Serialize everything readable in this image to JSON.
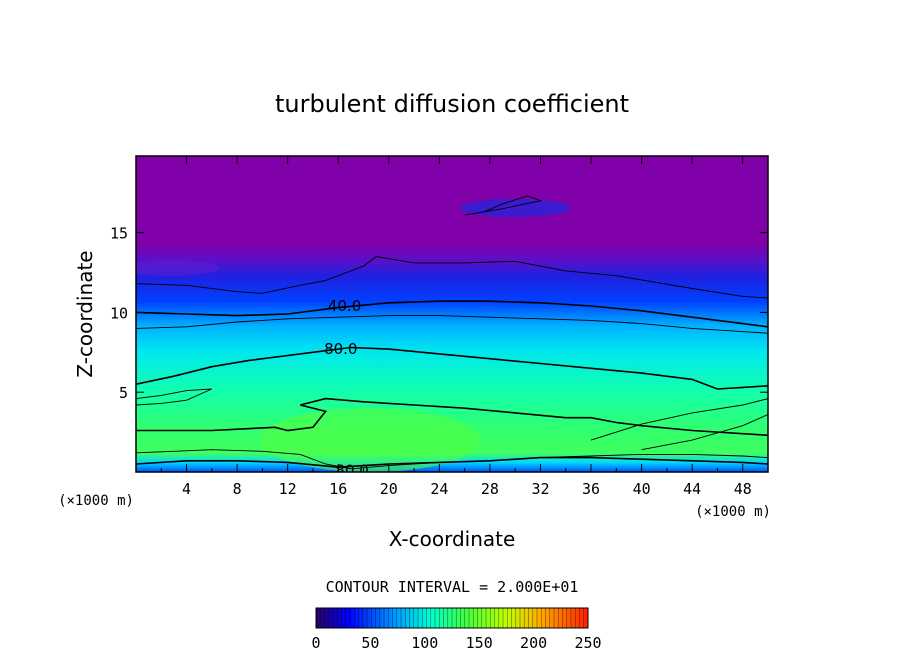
{
  "chart_data": {
    "type": "heatmap",
    "title": "turbulent diffusion coefficient",
    "xlabel": "X-coordinate",
    "ylabel": "Z-coordinate",
    "x_unit": "(×1000 m)",
    "z_unit": "(×1000 m)",
    "xlim": [
      0,
      50
    ],
    "ylim": [
      0,
      19.8
    ],
    "x_ticks": [
      4,
      8,
      12,
      16,
      20,
      24,
      28,
      32,
      36,
      40,
      44,
      48
    ],
    "y_ticks": [
      5,
      10,
      15
    ],
    "contour_interval_text": "CONTOUR INTERVAL = 2.000E+01",
    "contour_labels": [
      {
        "text": "40.0",
        "x": 16.5,
        "z": 10.4
      },
      {
        "text": "80.0",
        "x": 16.2,
        "z": 7.7
      },
      {
        "text": "80.0",
        "x": 17.1,
        "z": 0.1
      }
    ],
    "contours": [
      {
        "level": 20,
        "points": [
          [
            0,
            11.8
          ],
          [
            4,
            11.7
          ],
          [
            8,
            11.3
          ],
          [
            10,
            11.2
          ],
          [
            13,
            11.7
          ],
          [
            15,
            12.0
          ],
          [
            18,
            12.9
          ],
          [
            19,
            13.5
          ],
          [
            22,
            13.1
          ],
          [
            26,
            13.1
          ],
          [
            30,
            13.2
          ],
          [
            34,
            12.6
          ],
          [
            38,
            12.3
          ],
          [
            44,
            11.5
          ],
          [
            48,
            11.0
          ],
          [
            50,
            10.9
          ]
        ]
      },
      {
        "level": 40,
        "points": [
          [
            0,
            10.0
          ],
          [
            4,
            9.9
          ],
          [
            8,
            9.8
          ],
          [
            12,
            9.9
          ],
          [
            16,
            10.3
          ],
          [
            20,
            10.6
          ],
          [
            24,
            10.7
          ],
          [
            28,
            10.7
          ],
          [
            32,
            10.6
          ],
          [
            36,
            10.4
          ],
          [
            40,
            10.1
          ],
          [
            44,
            9.7
          ],
          [
            48,
            9.3
          ],
          [
            50,
            9.1
          ]
        ]
      },
      {
        "level": 60,
        "points": [
          [
            0,
            9.0
          ],
          [
            4,
            9.1
          ],
          [
            8,
            9.4
          ],
          [
            12,
            9.6
          ],
          [
            16,
            9.7
          ],
          [
            20,
            9.8
          ],
          [
            24,
            9.8
          ],
          [
            28,
            9.7
          ],
          [
            32,
            9.6
          ],
          [
            36,
            9.5
          ],
          [
            40,
            9.3
          ],
          [
            44,
            9.0
          ],
          [
            48,
            8.8
          ],
          [
            50,
            8.7
          ]
        ]
      },
      {
        "level": 80,
        "points": [
          [
            0,
            5.5
          ],
          [
            3,
            6.0
          ],
          [
            6,
            6.6
          ],
          [
            9,
            7.0
          ],
          [
            12,
            7.3
          ],
          [
            15,
            7.6
          ],
          [
            17,
            7.8
          ],
          [
            20,
            7.7
          ],
          [
            24,
            7.4
          ],
          [
            28,
            7.1
          ],
          [
            32,
            6.8
          ],
          [
            36,
            6.5
          ],
          [
            40,
            6.2
          ],
          [
            44,
            5.8
          ],
          [
            46,
            5.2
          ],
          [
            48,
            5.3
          ],
          [
            50,
            5.4
          ]
        ]
      },
      {
        "level": 100,
        "points": [
          [
            0,
            4.6
          ],
          [
            2,
            4.8
          ],
          [
            4,
            5.1
          ],
          [
            6,
            5.2
          ],
          [
            4,
            4.5
          ],
          [
            2,
            4.3
          ],
          [
            0,
            4.2
          ]
        ]
      },
      {
        "level": 120,
        "points": [
          [
            0,
            2.6
          ],
          [
            6,
            2.6
          ],
          [
            11,
            2.8
          ],
          [
            12,
            2.6
          ],
          [
            14,
            2.8
          ],
          [
            15,
            3.8
          ],
          [
            13,
            4.2
          ],
          [
            15,
            4.6
          ],
          [
            18,
            4.4
          ],
          [
            22,
            4.2
          ],
          [
            26,
            4.0
          ],
          [
            30,
            3.7
          ],
          [
            34,
            3.4
          ],
          [
            36,
            3.4
          ],
          [
            38,
            3.1
          ],
          [
            40,
            2.9
          ],
          [
            44,
            2.6
          ],
          [
            48,
            2.4
          ],
          [
            50,
            2.3
          ]
        ]
      },
      {
        "level": 100,
        "points": [
          [
            0,
            1.2
          ],
          [
            3,
            1.3
          ],
          [
            6,
            1.4
          ],
          [
            10,
            1.3
          ],
          [
            13,
            1.1
          ],
          [
            15,
            0.5
          ],
          [
            17,
            0.2
          ],
          [
            20,
            0.4
          ],
          [
            24,
            0.6
          ],
          [
            28,
            0.7
          ],
          [
            32,
            0.9
          ],
          [
            36,
            1.0
          ],
          [
            40,
            1.1
          ],
          [
            44,
            1.1
          ],
          [
            48,
            1.0
          ],
          [
            50,
            0.9
          ]
        ]
      },
      {
        "level": 80,
        "points": [
          [
            0,
            0.5
          ],
          [
            4,
            0.7
          ],
          [
            8,
            0.7
          ],
          [
            12,
            0.6
          ],
          [
            16,
            0.3
          ],
          [
            20,
            0.5
          ],
          [
            24,
            0.6
          ],
          [
            28,
            0.7
          ],
          [
            32,
            0.9
          ],
          [
            36,
            0.9
          ],
          [
            40,
            0.8
          ],
          [
            44,
            0.7
          ],
          [
            48,
            0.6
          ],
          [
            50,
            0.5
          ]
        ]
      },
      {
        "level": 140,
        "points": [
          [
            36,
            2.0
          ],
          [
            40,
            3.0
          ],
          [
            44,
            3.7
          ],
          [
            48,
            4.2
          ],
          [
            50,
            4.6
          ]
        ]
      },
      {
        "level": 140,
        "points": [
          [
            40,
            1.4
          ],
          [
            44,
            2.0
          ],
          [
            48,
            2.9
          ],
          [
            50,
            3.6
          ]
        ]
      },
      {
        "level": 20,
        "points": [
          [
            26,
            16.1
          ],
          [
            29,
            16.5
          ],
          [
            32,
            17.0
          ],
          [
            31,
            17.3
          ],
          [
            29,
            16.8
          ],
          [
            27.5,
            16.3
          ],
          [
            26,
            16.1
          ]
        ]
      }
    ],
    "colorbar": {
      "min": 0,
      "max": 250,
      "tick_values": [
        0,
        50,
        100,
        150,
        200,
        250
      ],
      "tick_labels": [
        "0",
        "50",
        "100",
        "150",
        "200",
        "250"
      ]
    }
  },
  "colors": {
    "field_top": "#7f00a8",
    "field_mid": "#0000ff",
    "field_cyan": "#00e0ff",
    "field_green": "#33ff66",
    "bar_high": "#ff4400"
  }
}
